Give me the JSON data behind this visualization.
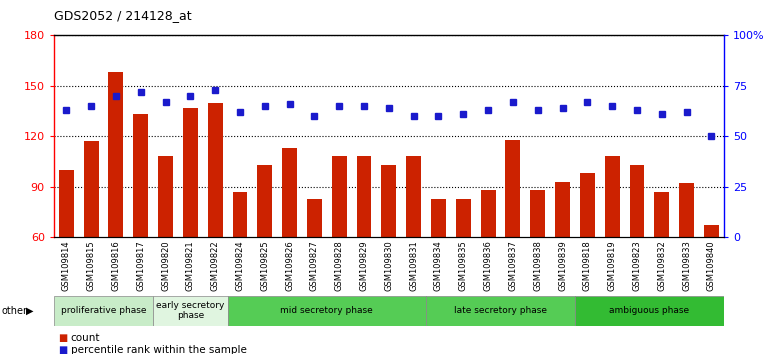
{
  "title": "GDS2052 / 214128_at",
  "categories": [
    "GSM109814",
    "GSM109815",
    "GSM109816",
    "GSM109817",
    "GSM109820",
    "GSM109821",
    "GSM109822",
    "GSM109824",
    "GSM109825",
    "GSM109826",
    "GSM109827",
    "GSM109828",
    "GSM109829",
    "GSM109830",
    "GSM109831",
    "GSM109834",
    "GSM109835",
    "GSM109836",
    "GSM109837",
    "GSM109838",
    "GSM109839",
    "GSM109818",
    "GSM109819",
    "GSM109823",
    "GSM109832",
    "GSM109833",
    "GSM109840"
  ],
  "bar_values": [
    100,
    117,
    158,
    133,
    108,
    137,
    140,
    87,
    103,
    113,
    83,
    108,
    108,
    103,
    108,
    83,
    83,
    88,
    118,
    88,
    93,
    98,
    108,
    103,
    87,
    92,
    67
  ],
  "dot_values": [
    63,
    65,
    70,
    72,
    67,
    70,
    73,
    62,
    65,
    66,
    60,
    65,
    65,
    64,
    60,
    60,
    61,
    63,
    67,
    63,
    64,
    67,
    65,
    63,
    61,
    62,
    50
  ],
  "ylim_left": [
    60,
    180
  ],
  "ylim_right": [
    0,
    100
  ],
  "yticks_left": [
    60,
    90,
    120,
    150,
    180
  ],
  "yticks_right": [
    0,
    25,
    50,
    75,
    100
  ],
  "ytick_right_labels": [
    "0",
    "25",
    "50",
    "75",
    "100%"
  ],
  "bar_color": "#cc2200",
  "dot_color": "#1a1acc",
  "phase_groups": [
    {
      "label": "proliferative phase",
      "start": 0,
      "end": 4,
      "color": "#c8ecc8"
    },
    {
      "label": "early secretory\nphase",
      "start": 4,
      "end": 7,
      "color": "#e0f5e0"
    },
    {
      "label": "mid secretory phase",
      "start": 7,
      "end": 15,
      "color": "#55cc55"
    },
    {
      "label": "late secretory phase",
      "start": 15,
      "end": 21,
      "color": "#55cc55"
    },
    {
      "label": "ambiguous phase",
      "start": 21,
      "end": 27,
      "color": "#33bb33"
    }
  ],
  "legend_count_label": "count",
  "legend_pct_label": "percentile rank within the sample",
  "other_label": "other"
}
